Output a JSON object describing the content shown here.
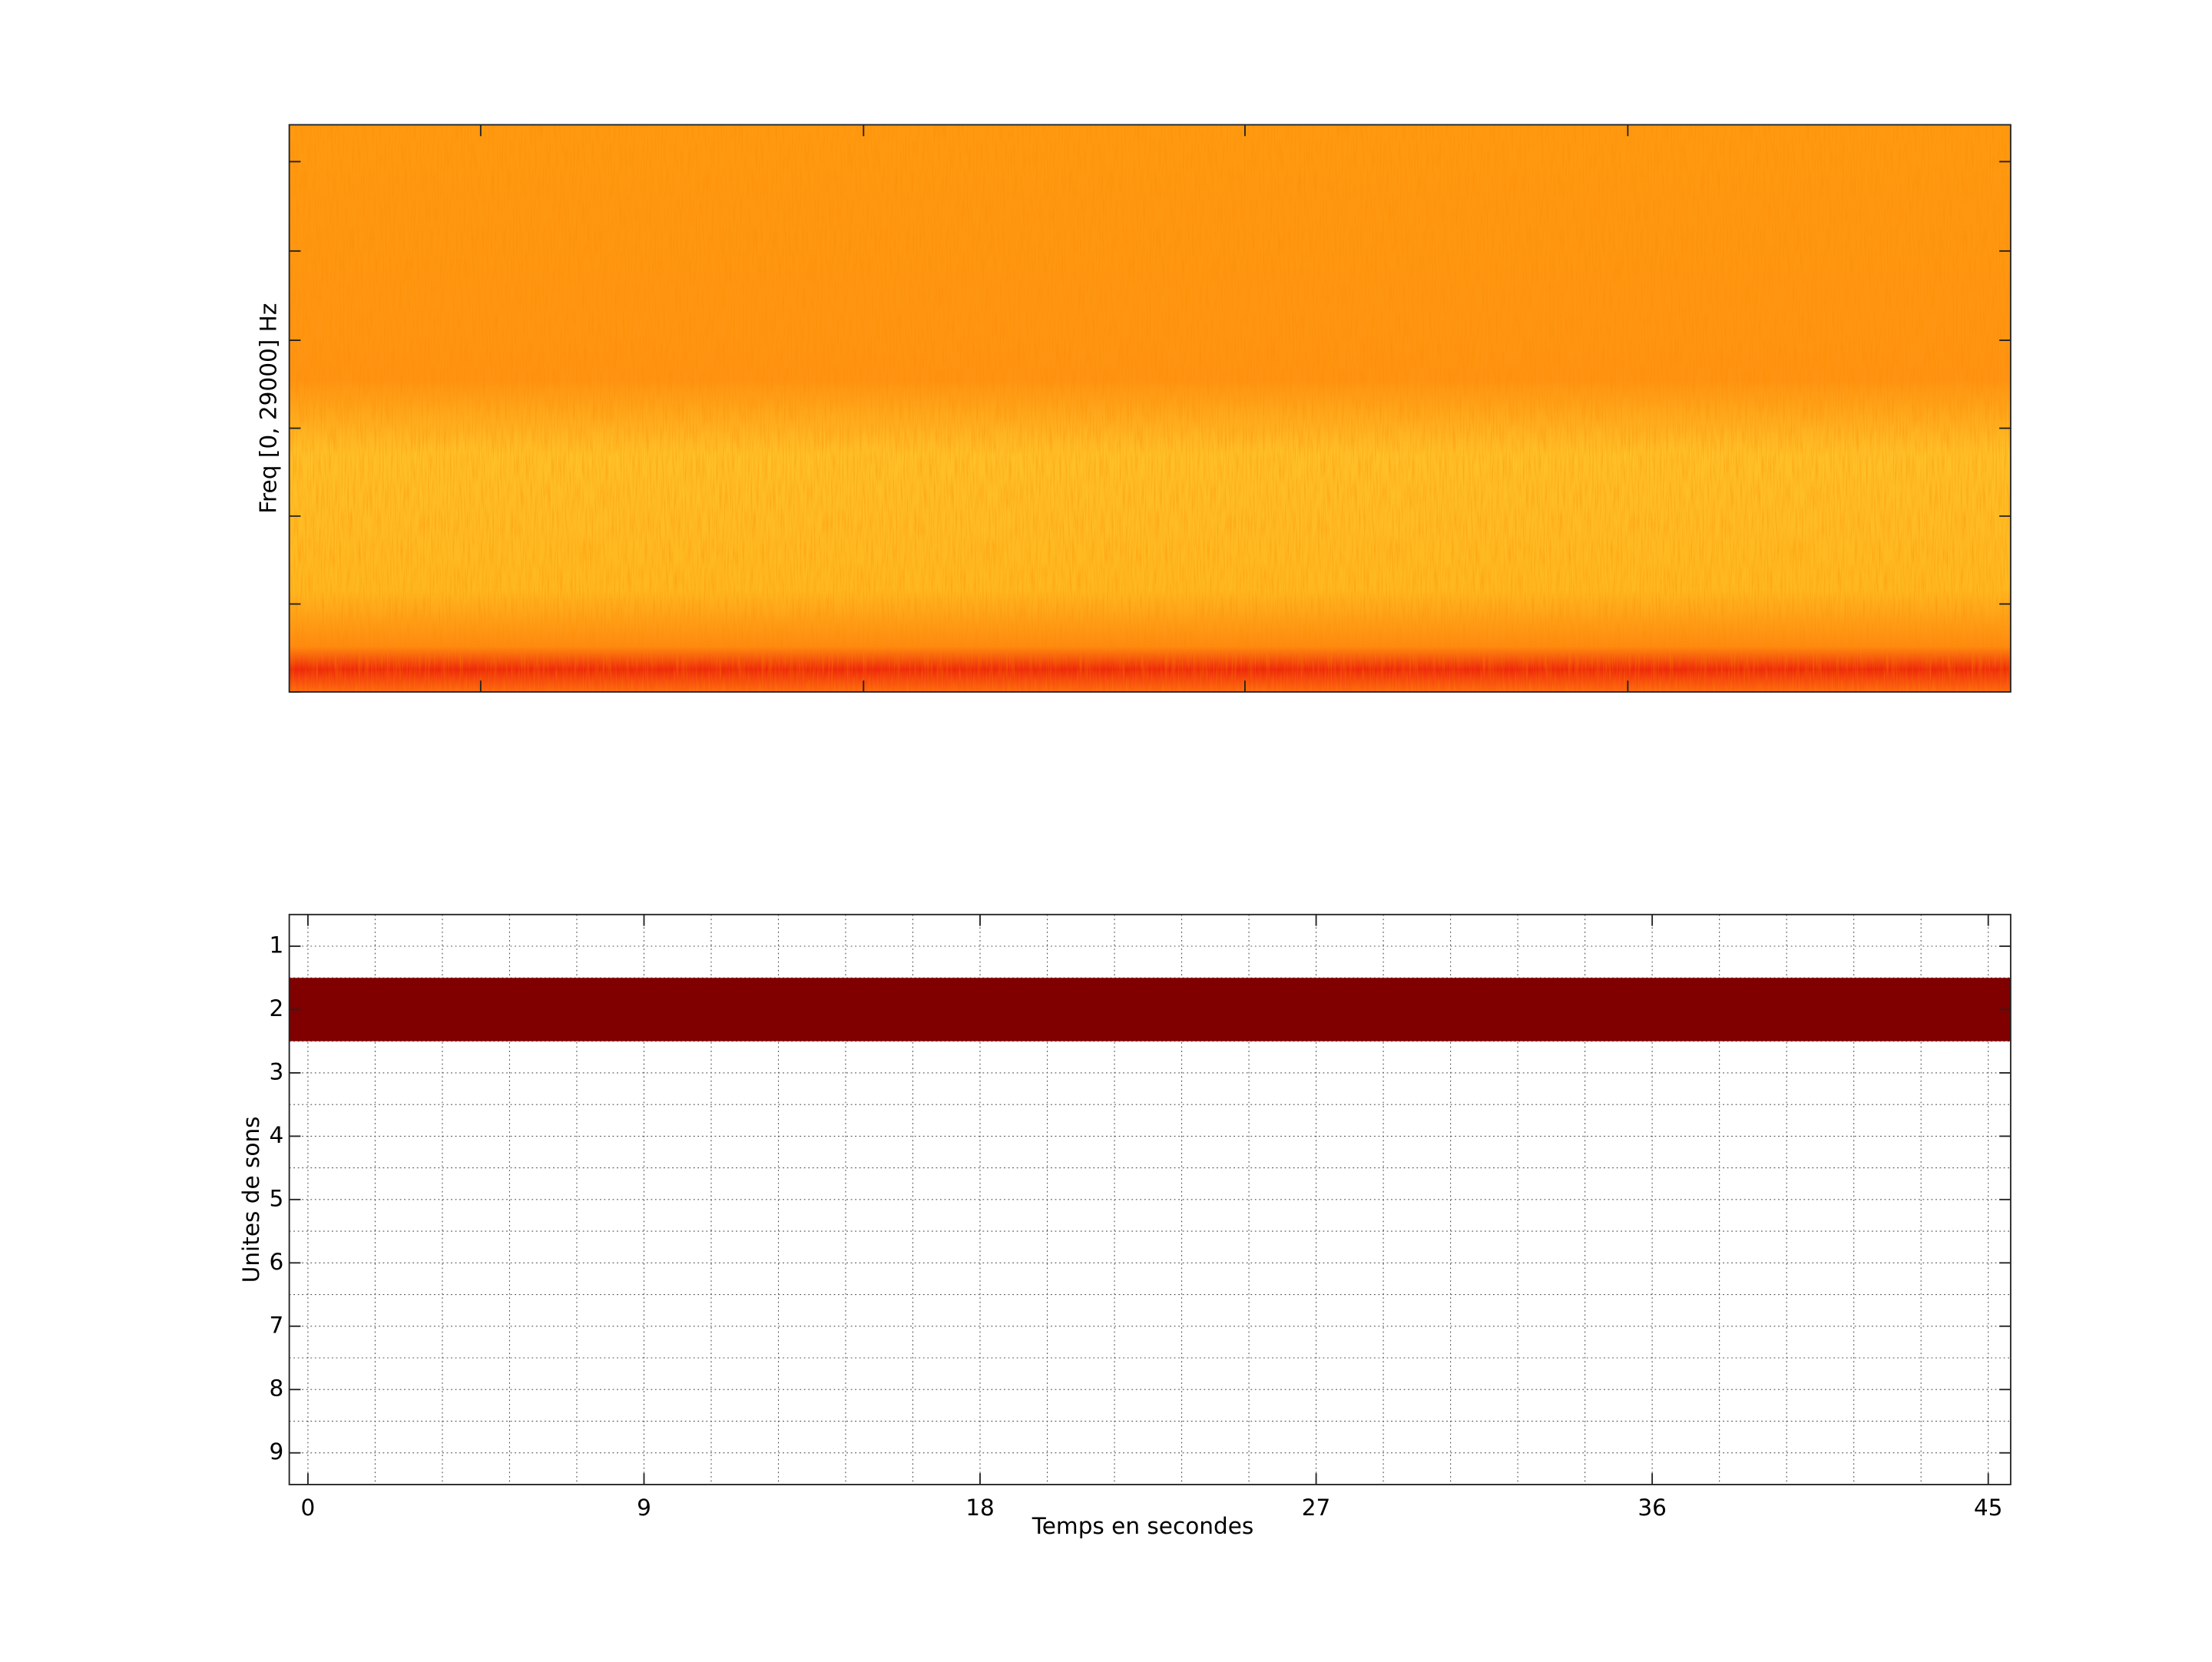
{
  "chart_data": [
    {
      "type": "spectrogram",
      "ylabel": "Freq [0, 29000] Hz"
    },
    {
      "type": "raster",
      "xlabel": "Temps en secondes",
      "ylabel": "Unites de sons",
      "xlim": [
        -0.5,
        45.6
      ],
      "ylim": [
        0.5,
        9.5
      ],
      "y_inverted": true,
      "xticks": [
        0,
        9,
        18,
        27,
        36,
        45
      ],
      "yticks": [
        1,
        2,
        3,
        4,
        5,
        6,
        7,
        8,
        9
      ],
      "grid": true,
      "xgrid": [
        0,
        1.8,
        3.6,
        5.4,
        7.2,
        9,
        10.8,
        12.6,
        14.4,
        16.2,
        18,
        19.8,
        21.6,
        23.4,
        25.2,
        27,
        28.8,
        30.6,
        32.4,
        34.2,
        36,
        37.8,
        39.6,
        41.4,
        43.2,
        45
      ],
      "ygrid": [
        1,
        1.5,
        2,
        2.5,
        3,
        3.5,
        4,
        4.5,
        5,
        5.5,
        6,
        6.5,
        7,
        7.5,
        8,
        8.5,
        9
      ],
      "color": "#800000",
      "segments": [
        {
          "unit": 2,
          "start": -0.5,
          "end": 45.6
        }
      ]
    }
  ]
}
